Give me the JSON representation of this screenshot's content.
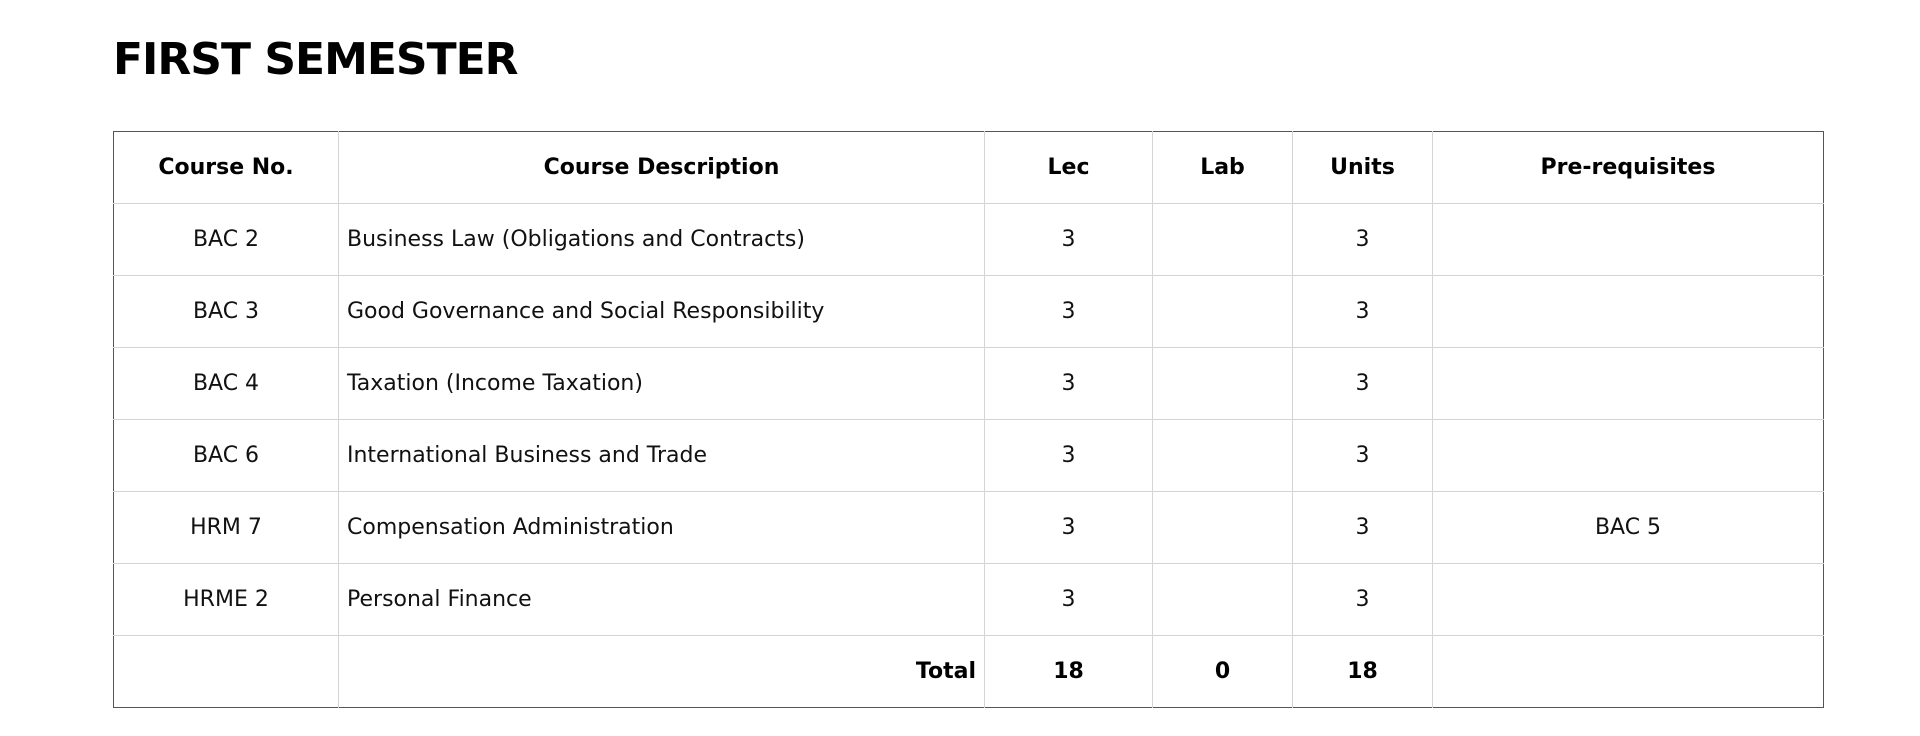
{
  "title": "FIRST SEMESTER",
  "headers": {
    "course_no": "Course No.",
    "description": "Course Description",
    "lec": "Lec",
    "lab": "Lab",
    "units": "Units",
    "prereq": "Pre-requisites"
  },
  "rows": [
    {
      "course_no": "BAC 2",
      "description": "Business Law (Obligations and Contracts)",
      "lec": "3",
      "lab": "",
      "units": "3",
      "prereq": ""
    },
    {
      "course_no": "BAC 3",
      "description": "Good Governance and Social Responsibility",
      "lec": "3",
      "lab": "",
      "units": "3",
      "prereq": ""
    },
    {
      "course_no": "BAC 4",
      "description": "Taxation (Income Taxation)",
      "lec": "3",
      "lab": "",
      "units": "3",
      "prereq": ""
    },
    {
      "course_no": "BAC 6",
      "description": "International Business and Trade",
      "lec": "3",
      "lab": "",
      "units": "3",
      "prereq": ""
    },
    {
      "course_no": "HRM 7",
      "description": "Compensation Administration",
      "lec": "3",
      "lab": "",
      "units": "3",
      "prereq": "BAC 5"
    },
    {
      "course_no": "HRME 2",
      "description": "Personal Finance",
      "lec": "3",
      "lab": "",
      "units": "3",
      "prereq": ""
    }
  ],
  "total": {
    "label": "Total",
    "lec": "18",
    "lab": "0",
    "units": "18"
  }
}
